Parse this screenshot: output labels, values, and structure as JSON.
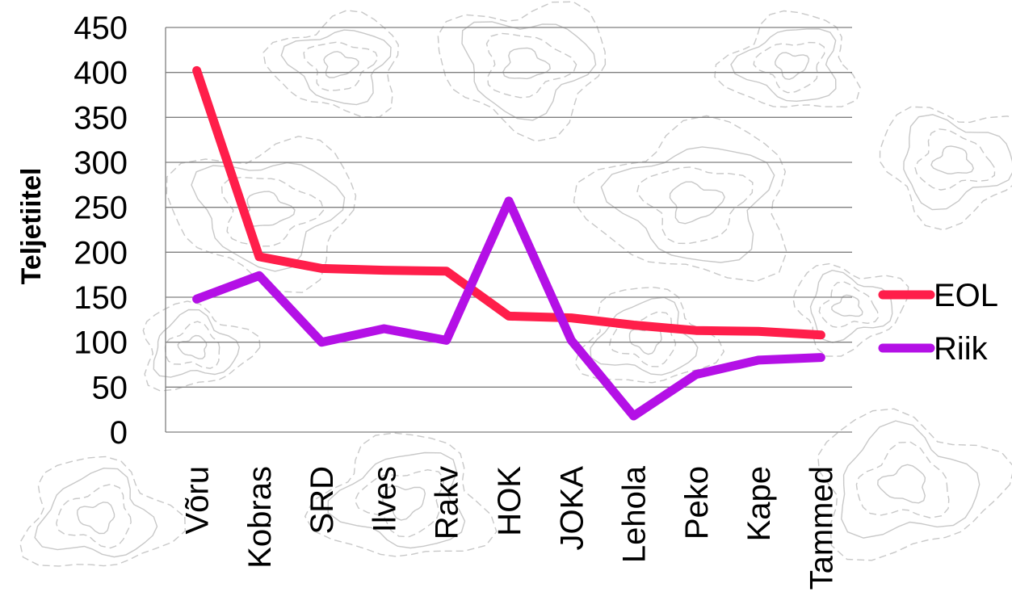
{
  "chart_data": {
    "type": "line",
    "title": "",
    "ylabel": "Teljetiitel",
    "xlabel": "",
    "categories": [
      "Võru",
      "Kobras",
      "SRD",
      "Ilves",
      "Rakv",
      "HOK",
      "JOKA",
      "Lehola",
      "Peko",
      "Kape",
      "Tammed"
    ],
    "yticks": [
      "0",
      "50",
      "100",
      "150",
      "200",
      "250",
      "300",
      "350",
      "400",
      "450"
    ],
    "ylim": [
      0,
      450
    ],
    "grid": true,
    "legend_position": "right",
    "series": [
      {
        "name": "EOL",
        "color": "#ff1e4a",
        "values": [
          402,
          195,
          182,
          180,
          179,
          129,
          127,
          119,
          113,
          112,
          108
        ]
      },
      {
        "name": "Riik",
        "color": "#b410e6",
        "values": [
          148,
          174,
          100,
          115,
          102,
          257,
          102,
          18,
          64,
          80,
          83
        ]
      }
    ]
  }
}
